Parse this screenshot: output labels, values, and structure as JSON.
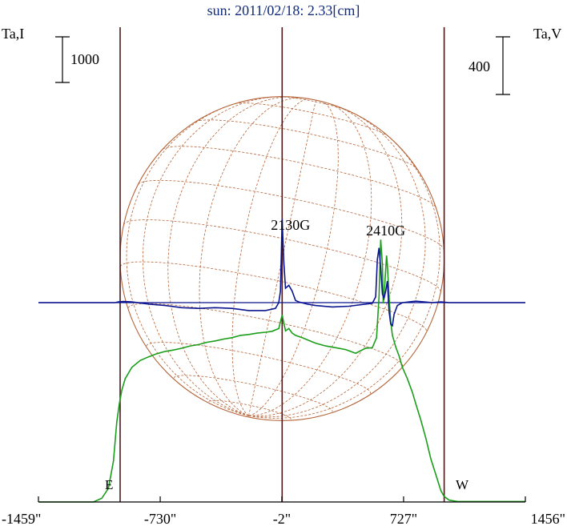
{
  "chart_data": {
    "type": "line",
    "title": "sun: 2011/02/18: 2.33[cm]",
    "ylabel_left": "Ta,I",
    "ylabel_right": "Ta,V",
    "scale_left_label": "1000",
    "scale_right_label": "400",
    "x_ticks": [
      {
        "value": -1459,
        "label": "-1459\""
      },
      {
        "value": -730,
        "label": "-730\""
      },
      {
        "value": -2,
        "label": "-2\""
      },
      {
        "value": 727,
        "label": "727\""
      },
      {
        "value": 1456,
        "label": "1456\""
      }
    ],
    "xlim": [
      -1459,
      1456
    ],
    "east_label": "E",
    "west_label": "W",
    "limb_lines": [
      -970,
      0,
      970
    ],
    "annotations": [
      {
        "text": "2130G",
        "x": 50
      },
      {
        "text": "2410G",
        "x": 620
      }
    ],
    "colors": {
      "intensity": "#1a9e1a",
      "polarization": "#0a1490",
      "disk_grid": "#b5653a",
      "axis": "#000000",
      "limb": "#4a1a1a",
      "title": "#102a7a"
    },
    "series": [
      {
        "name": "I",
        "color": "#1a9e1a",
        "x": [
          -1459,
          -1130,
          -1080,
          -1040,
          -1010,
          -990,
          -975,
          -960,
          -940,
          -900,
          -850,
          -800,
          -750,
          -700,
          -650,
          -600,
          -550,
          -500,
          -450,
          -400,
          -350,
          -300,
          -250,
          -200,
          -150,
          -100,
          -60,
          -20,
          0,
          20,
          40,
          60,
          80,
          120,
          160,
          200,
          260,
          320,
          380,
          440,
          500,
          540,
          565,
          580,
          590,
          600,
          605,
          615,
          625,
          630,
          640,
          650,
          660,
          680,
          700,
          720,
          750,
          780,
          800,
          830,
          860,
          890,
          920,
          950,
          970,
          1000,
          1050,
          1456
        ],
        "y": [
          0,
          0,
          80,
          300,
          900,
          1750,
          2150,
          2450,
          2700,
          2950,
          3100,
          3180,
          3250,
          3300,
          3330,
          3370,
          3420,
          3450,
          3500,
          3530,
          3570,
          3600,
          3650,
          3670,
          3700,
          3720,
          3740,
          3800,
          4100,
          3750,
          3800,
          3700,
          3650,
          3600,
          3540,
          3480,
          3420,
          3380,
          3340,
          3260,
          3370,
          3380,
          3600,
          4500,
          5750,
          5200,
          4350,
          4800,
          5400,
          5200,
          4500,
          3950,
          3650,
          3400,
          3200,
          2950,
          2700,
          2400,
          2150,
          1800,
          1400,
          950,
          600,
          250,
          120,
          40,
          10,
          10
        ]
      },
      {
        "name": "V",
        "color": "#0a1490",
        "x": [
          -1459,
          -1000,
          -980,
          -950,
          -900,
          -800,
          -700,
          -600,
          -500,
          -400,
          -300,
          -200,
          -100,
          -40,
          -20,
          -10,
          0,
          10,
          20,
          40,
          60,
          80,
          100,
          150,
          200,
          300,
          400,
          500,
          540,
          560,
          570,
          580,
          590,
          600,
          610,
          620,
          630,
          640,
          650,
          660,
          670,
          690,
          720,
          760,
          800,
          850,
          900,
          950,
          1000,
          1456
        ],
        "y": [
          0,
          0,
          5,
          8,
          5,
          -10,
          -20,
          -35,
          -40,
          -35,
          -40,
          -55,
          -55,
          -40,
          0,
          80,
          580,
          280,
          100,
          120,
          80,
          15,
          5,
          -10,
          -20,
          -30,
          -25,
          -10,
          -5,
          40,
          300,
          380,
          240,
          60,
          30,
          80,
          150,
          -60,
          -150,
          -160,
          -80,
          -20,
          0,
          5,
          10,
          5,
          0,
          5,
          0,
          0
        ]
      }
    ]
  }
}
